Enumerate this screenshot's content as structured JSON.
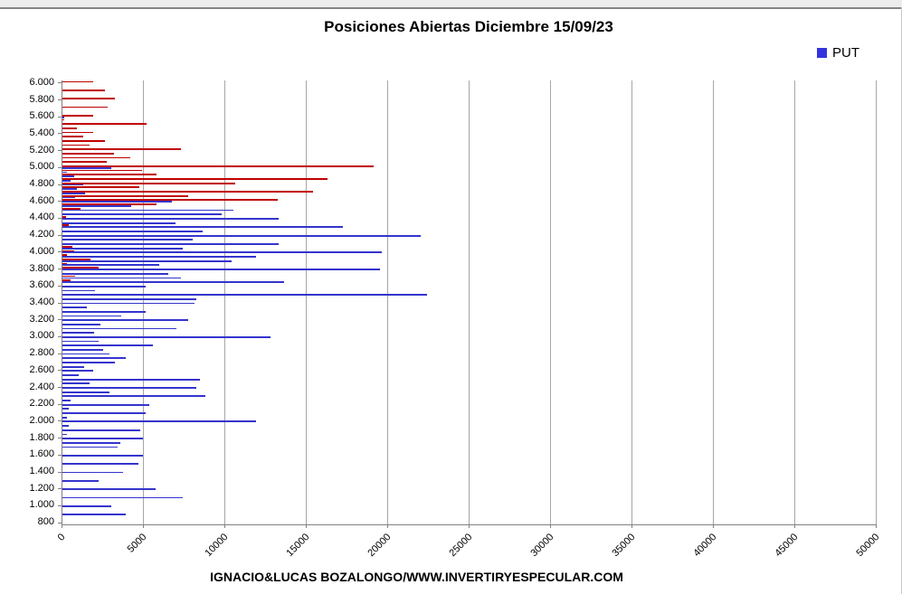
{
  "caption": "IGNACIO&LUCAS BOZALONGO/WWW.INVERTIRYESPECULAR.COM",
  "chart_data": {
    "type": "bar",
    "orientation": "horizontal",
    "title": "Posiciones Abiertas Diciembre 15/09/23",
    "legend": [
      {
        "name": "PUT",
        "color": "#3434DE"
      }
    ],
    "series_colors": {
      "call": "#C00000",
      "put": "#3434CE"
    },
    "x_range": [
      0,
      50000
    ],
    "x_tick_step": 5000,
    "x_tick_labels": [
      "0",
      "5000",
      "10000",
      "15000",
      "20000",
      "25000",
      "30000",
      "35000",
      "40000",
      "45000",
      "50000"
    ],
    "y_tick_labels": [
      "6.000",
      "5.800",
      "5.600",
      "5.400",
      "5.200",
      "5.000",
      "4.800",
      "4.600",
      "4.400",
      "4.200",
      "4.000",
      "3.800",
      "3.600",
      "3.400",
      "3.200",
      "3.000",
      "2.800",
      "2.600",
      "2.400",
      "2.200",
      "2.000",
      "1.800",
      "1.600",
      "1.400",
      "1.200",
      "1.000",
      "800"
    ],
    "grid": "vertical",
    "legend_position": "top-right",
    "rows_format": [
      "strike",
      "call_open_interest",
      "put_open_interest"
    ],
    "rows": [
      [
        6000,
        1900,
        0
      ],
      [
        5950,
        0,
        0
      ],
      [
        5900,
        2600,
        0
      ],
      [
        5850,
        0,
        0
      ],
      [
        5800,
        3200,
        0
      ],
      [
        5750,
        0,
        0
      ],
      [
        5700,
        2800,
        0
      ],
      [
        5650,
        0,
        0
      ],
      [
        5600,
        1900,
        100
      ],
      [
        5550,
        100,
        0
      ],
      [
        5500,
        5150,
        0
      ],
      [
        5450,
        900,
        0
      ],
      [
        5400,
        1900,
        0
      ],
      [
        5350,
        1250,
        0
      ],
      [
        5300,
        2600,
        0
      ],
      [
        5250,
        1650,
        0
      ],
      [
        5200,
        7300,
        0
      ],
      [
        5150,
        3150,
        0
      ],
      [
        5100,
        4150,
        0
      ],
      [
        5050,
        2700,
        0
      ],
      [
        5000,
        19100,
        3000
      ],
      [
        4950,
        4900,
        300
      ],
      [
        4900,
        5800,
        700
      ],
      [
        4850,
        16300,
        500
      ],
      [
        4800,
        10600,
        1300
      ],
      [
        4750,
        4700,
        900
      ],
      [
        4700,
        15400,
        1400
      ],
      [
        4650,
        7700,
        800
      ],
      [
        4600,
        13200,
        6700
      ],
      [
        4550,
        5800,
        4200
      ],
      [
        4500,
        1100,
        10500
      ],
      [
        4450,
        0,
        9800
      ],
      [
        4400,
        200,
        13300
      ],
      [
        4350,
        0,
        6950
      ],
      [
        4300,
        400,
        17200
      ],
      [
        4250,
        0,
        8600
      ],
      [
        4200,
        0,
        22000
      ],
      [
        4150,
        0,
        8000
      ],
      [
        4100,
        0,
        13300
      ],
      [
        4050,
        600,
        7400
      ],
      [
        4000,
        700,
        19600
      ],
      [
        3950,
        300,
        11900
      ],
      [
        3900,
        1700,
        10400
      ],
      [
        3850,
        300,
        5950
      ],
      [
        3800,
        2200,
        19500
      ],
      [
        3750,
        0,
        6500
      ],
      [
        3700,
        800,
        7250
      ],
      [
        3650,
        500,
        13600
      ],
      [
        3600,
        0,
        5100
      ],
      [
        3550,
        0,
        2000
      ],
      [
        3500,
        0,
        22400
      ],
      [
        3450,
        0,
        8200
      ],
      [
        3400,
        0,
        8100
      ],
      [
        3350,
        0,
        1500
      ],
      [
        3300,
        0,
        5100
      ],
      [
        3250,
        0,
        3600
      ],
      [
        3200,
        0,
        7700
      ],
      [
        3150,
        0,
        2340
      ],
      [
        3100,
        0,
        7000
      ],
      [
        3050,
        0,
        1950
      ],
      [
        3000,
        0,
        12800
      ],
      [
        2950,
        0,
        2230
      ],
      [
        2900,
        0,
        5560
      ],
      [
        2850,
        0,
        2500
      ],
      [
        2800,
        0,
        2900
      ],
      [
        2750,
        0,
        3900
      ],
      [
        2700,
        0,
        3200
      ],
      [
        2650,
        0,
        1330
      ],
      [
        2600,
        0,
        1900
      ],
      [
        2550,
        0,
        1000
      ],
      [
        2500,
        0,
        8450
      ],
      [
        2450,
        0,
        1690
      ],
      [
        2400,
        0,
        8200
      ],
      [
        2350,
        0,
        2890
      ],
      [
        2300,
        0,
        8800
      ],
      [
        2250,
        0,
        500
      ],
      [
        2200,
        0,
        5360
      ],
      [
        2150,
        0,
        400
      ],
      [
        2100,
        0,
        5100
      ],
      [
        2050,
        0,
        300
      ],
      [
        2000,
        0,
        11900
      ],
      [
        1950,
        0,
        400
      ],
      [
        1900,
        0,
        4790
      ],
      [
        1850,
        0,
        300
      ],
      [
        1800,
        0,
        4930
      ],
      [
        1750,
        0,
        3550
      ],
      [
        1700,
        0,
        3390
      ],
      [
        1650,
        0,
        0
      ],
      [
        1600,
        0,
        4930
      ],
      [
        1550,
        0,
        0
      ],
      [
        1500,
        0,
        4640
      ],
      [
        1450,
        0,
        0
      ],
      [
        1400,
        0,
        3700
      ],
      [
        1350,
        0,
        0
      ],
      [
        1300,
        0,
        2200
      ],
      [
        1250,
        0,
        0
      ],
      [
        1200,
        0,
        5700
      ],
      [
        1150,
        0,
        0
      ],
      [
        1100,
        0,
        7400
      ],
      [
        1050,
        0,
        0
      ],
      [
        1000,
        0,
        3000
      ],
      [
        950,
        0,
        0
      ],
      [
        900,
        0,
        3900
      ],
      [
        850,
        0,
        0
      ],
      [
        800,
        0,
        0
      ]
    ]
  }
}
